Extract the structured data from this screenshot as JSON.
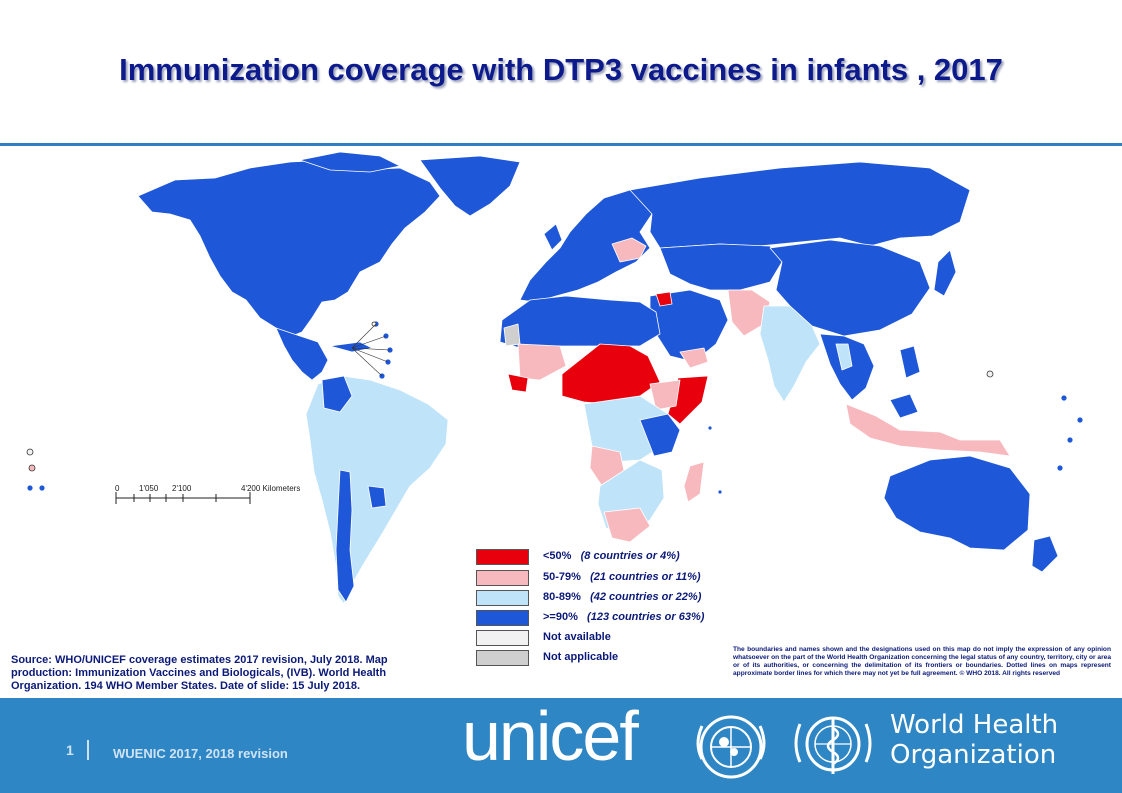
{
  "title": "Immunization coverage with DTP3 vaccines in infants , 2017",
  "scale": {
    "ticks": [
      "0",
      "1'050",
      "2'100",
      "4'200 Kilometers"
    ]
  },
  "legend": [
    {
      "label": "<50%",
      "count": "(8 countries or 4%)",
      "color": "#e8000c"
    },
    {
      "label": "50-79%",
      "count": "(21 countries or 11%)",
      "color": "#f7b9be"
    },
    {
      "label": "80-89%",
      "count": "(42 countries or 22%)",
      "color": "#bfe3f8"
    },
    {
      "label": ">=90%",
      "count": "(123 countries or 63%)",
      "color": "#1e57d8"
    },
    {
      "label": "Not available",
      "count": "",
      "color": "#f2f2f2"
    },
    {
      "label": "Not applicable",
      "count": "",
      "color": "#cfcfcf"
    }
  ],
  "source": "Source: WHO/UNICEF coverage estimates 2017 revision, July 2018. Map production: Immunization Vaccines and Biologicals, (IVB). World Health Organization. 194 WHO Member States. Date of slide: 15 July 2018.",
  "disclaimer": "The boundaries and names shown and the designations used on this map do not imply the expression of any opinion whatsoever on the part of the World Health Organization concerning the legal status of any country, territory, city or area or of its authorities, or concerning the delimitation of its frontiers or boundaries. Dotted lines on maps represent approximate border lines for which there may not yet be full agreement. © WHO 2018. All rights reserved",
  "footer": {
    "page_number": "1",
    "text": "WUENIC 2017, 2018 revision",
    "unicef_logo": "unicef",
    "who_name_line1": "World Health",
    "who_name_line2": "Organization"
  },
  "colors": {
    "title": "#0d1a8c",
    "rule": "#2f7fc1",
    "footer_bg": "#2e86c4",
    "border": "#ffffff"
  }
}
